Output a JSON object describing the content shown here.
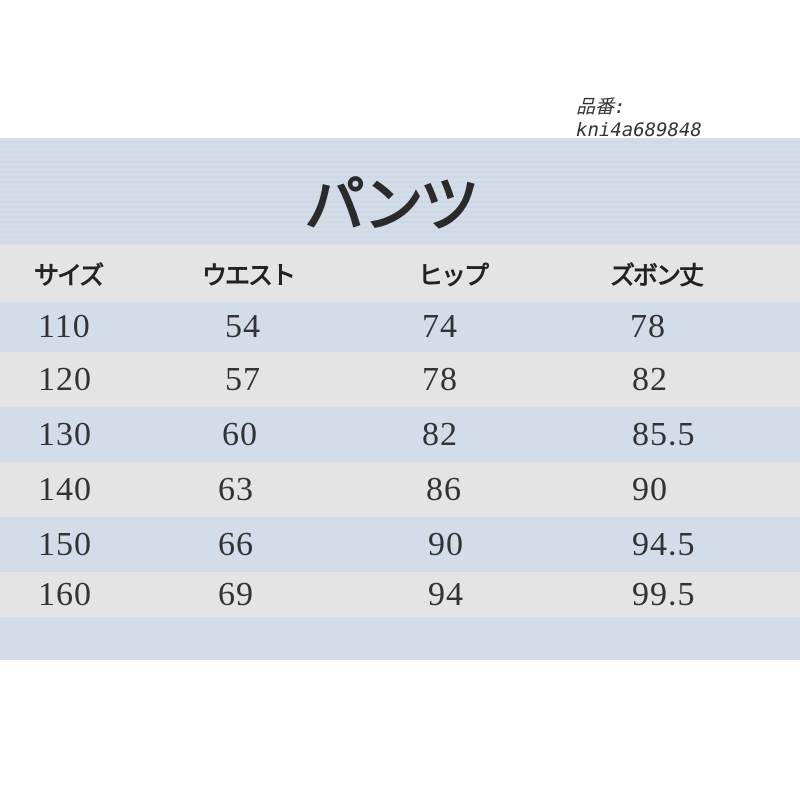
{
  "product_code_label": "品番:",
  "product_code": "kni4a689848",
  "title": "パンツ",
  "columns": [
    "サイズ",
    "ウエスト",
    "ヒップ",
    "ズボン丈"
  ],
  "rows": [
    [
      "110",
      "54",
      "74",
      "78"
    ],
    [
      "120",
      "57",
      "78",
      "82"
    ],
    [
      "130",
      "60",
      "82",
      "85.5"
    ],
    [
      "140",
      "63",
      "86",
      "90"
    ],
    [
      "150",
      "66",
      "90",
      "94.5"
    ],
    [
      "160",
      "69",
      "94",
      "99.5"
    ]
  ],
  "colors": {
    "band_blue": "#d3dde9",
    "band_gray": "#e4e4e4",
    "text": "#333333"
  }
}
